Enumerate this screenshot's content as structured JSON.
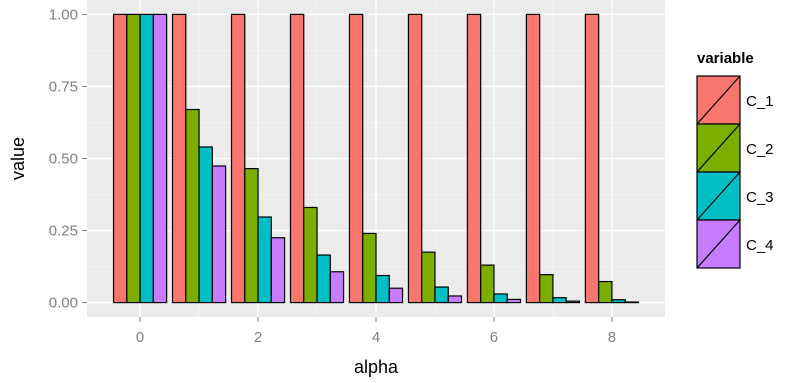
{
  "chart_data": {
    "type": "bar",
    "xlabel": "alpha",
    "ylabel": "value",
    "x": [
      0,
      1,
      2,
      3,
      4,
      5,
      6,
      7,
      8
    ],
    "xticks": [
      0,
      2,
      4,
      6,
      8
    ],
    "xtick_labels": [
      "0",
      "2",
      "4",
      "6",
      "8"
    ],
    "ylim": [
      0,
      1
    ],
    "yticks": [
      0,
      0.25,
      0.5,
      0.75,
      1
    ],
    "ytick_labels": [
      "0.00",
      "0.25",
      "0.50",
      "0.75",
      "1.00"
    ],
    "grid": true,
    "background": "#ebebeb",
    "legend": {
      "title": "variable",
      "position": "right"
    },
    "series": [
      {
        "name": "C_1",
        "color": "#f8766d",
        "values": [
          1,
          1,
          1,
          1,
          1,
          1,
          1,
          1,
          1
        ]
      },
      {
        "name": "C_2",
        "color": "#7cae00",
        "values": [
          1,
          0.67,
          0.465,
          0.33,
          0.24,
          0.175,
          0.13,
          0.097,
          0.073
        ]
      },
      {
        "name": "C_3",
        "color": "#00bfc4",
        "values": [
          1,
          0.54,
          0.297,
          0.165,
          0.094,
          0.054,
          0.03,
          0.017,
          0.01
        ]
      },
      {
        "name": "C_4",
        "color": "#c77cff",
        "values": [
          1,
          0.474,
          0.225,
          0.107,
          0.05,
          0.023,
          0.011,
          0.005,
          0.002
        ]
      }
    ]
  }
}
